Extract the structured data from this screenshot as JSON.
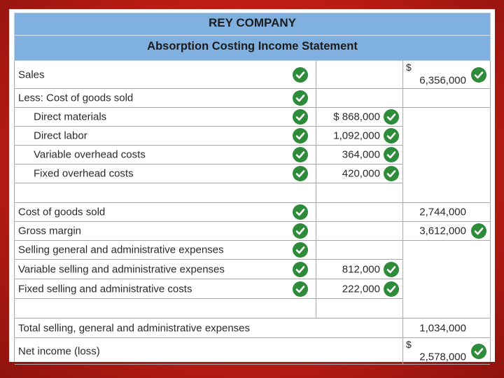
{
  "header": {
    "company": "REY COMPANY",
    "statement": "Absorption Costing Income Statement"
  },
  "rows": {
    "sales": {
      "label": "Sales",
      "currency": "$",
      "total": "6,356,000"
    },
    "less_cogs": {
      "label": "Less: Cost of goods sold"
    },
    "direct_materials": {
      "label": "Direct materials",
      "amount": "$ 868,000"
    },
    "direct_labor": {
      "label": "Direct labor",
      "amount": "1,092,000"
    },
    "variable_overhead": {
      "label": "Variable overhead costs",
      "amount": "364,000"
    },
    "fixed_overhead": {
      "label": "Fixed overhead costs",
      "amount": "420,000"
    },
    "cogs": {
      "label": "Cost of goods sold",
      "total": "2,744,000"
    },
    "gross_margin": {
      "label": "Gross margin",
      "total": "3,612,000"
    },
    "sga": {
      "label": "Selling general and administrative expenses"
    },
    "variable_sga": {
      "label": "Variable selling and administrative expenses",
      "amount": "812,000"
    },
    "fixed_sga": {
      "label": "Fixed selling and administrative costs",
      "amount": "222,000"
    },
    "total_sga": {
      "label": "Total selling, general and administrative expenses",
      "total": "1,034,000"
    },
    "net_income": {
      "label": "Net income (loss)",
      "currency": "$",
      "total": "2,578,000"
    }
  },
  "colors": {
    "background": "#c01d14",
    "header_band": "#7fb0e0",
    "check": "#2e8b3a"
  },
  "icons": {
    "correct": "check-circle-icon"
  }
}
